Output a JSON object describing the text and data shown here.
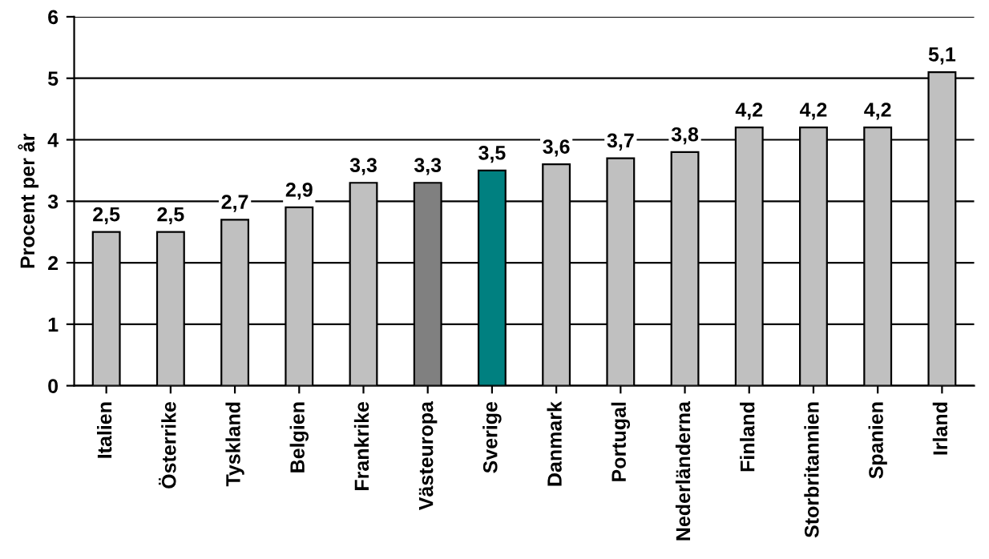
{
  "chart_data": {
    "type": "bar",
    "ylabel": "Procent per år",
    "categories": [
      "Italien",
      "Österrike",
      "Tyskland",
      "Belgien",
      "Frankrike",
      "Västeuropa",
      "Sverige",
      "Danmark",
      "Portugal",
      "Nederländerna",
      "Finland",
      "Storbritannien",
      "Spanien",
      "Irland"
    ],
    "values": [
      2.5,
      2.5,
      2.7,
      2.9,
      3.3,
      3.3,
      3.5,
      3.6,
      3.7,
      3.8,
      4.2,
      4.2,
      4.2,
      5.1
    ],
    "colors": [
      "#c0c0c0",
      "#c0c0c0",
      "#c0c0c0",
      "#c0c0c0",
      "#c0c0c0",
      "#808080",
      "#008080",
      "#c0c0c0",
      "#c0c0c0",
      "#c0c0c0",
      "#c0c0c0",
      "#c0c0c0",
      "#c0c0c0",
      "#c0c0c0"
    ],
    "value_labels": [
      "2,5",
      "2,5",
      "2,7",
      "2,9",
      "3,3",
      "3,3",
      "3,5",
      "3,6",
      "3,7",
      "3,8",
      "4,2",
      "4,2",
      "4,2",
      "5,1"
    ],
    "ylim": [
      0,
      6
    ],
    "yticks": [
      0,
      1,
      2,
      3,
      4,
      5,
      6
    ],
    "grid": "y",
    "legend": false
  }
}
